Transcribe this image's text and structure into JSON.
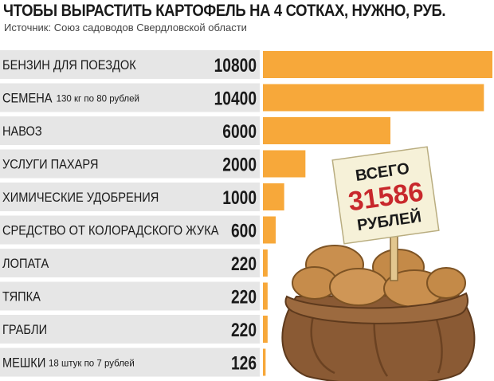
{
  "header": {
    "title": "ЧТОБЫ ВЫРАСТИТЬ КАРТОФЕЛЬ НА 4 СОТКАХ, НУЖНО, РУБ.",
    "source": "Источник: Союз садоводов Свердловской области"
  },
  "sign": {
    "line1": "ВСЕГО",
    "total": "31586",
    "line3": "РУБЛЕЙ"
  },
  "colors": {
    "bar": "#f7a83a",
    "row_band": "#e6e6e6",
    "total_text": "#c8282c",
    "sack": "#8a5a34"
  },
  "chart_data": {
    "type": "bar",
    "orientation": "horizontal",
    "title": "ЧТОБЫ ВЫРАСТИТЬ КАРТОФЕЛЬ НА 4 СОТКАХ, НУЖНО, РУБ.",
    "categories": [
      "БЕНЗИН ДЛЯ ПОЕЗДОК",
      "СЕМЕНА",
      "НАВОЗ",
      "УСЛУГИ ПАХАРЯ",
      "ХИМИЧЕСКИЕ УДОБРЕНИЯ",
      "СРЕДСТВО ОТ КОЛОРАДСКОГО ЖУКА",
      "ЛОПАТА",
      "ТЯПКА",
      "ГРАБЛИ",
      "МЕШКИ"
    ],
    "notes": [
      "",
      "130 кг по 80 рублей",
      "",
      "",
      "",
      "",
      "",
      "",
      "",
      "18 штук по 7 рублей"
    ],
    "values": [
      10800,
      10400,
      6000,
      2000,
      1000,
      600,
      220,
      220,
      220,
      126
    ],
    "value_labels": [
      "10800",
      "10400",
      "6000",
      "2000",
      "1000",
      "600",
      "220",
      "220",
      "220",
      "126"
    ],
    "xlim": [
      0,
      10800
    ],
    "grid": false,
    "legend": "none"
  }
}
